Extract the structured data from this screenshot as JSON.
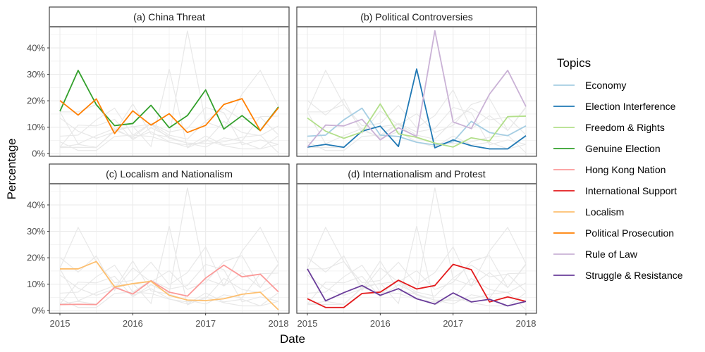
{
  "chart_data": {
    "type": "line",
    "xlabel": "Date",
    "ylabel": "Percentage",
    "x_ticks": [
      "2015",
      "2016",
      "2017",
      "2018"
    ],
    "y_ticks": [
      "0%",
      "10%",
      "20%",
      "30%",
      "40%"
    ],
    "xlim": [
      2015.0,
      2018.0
    ],
    "ylim": [
      -0.01,
      0.48
    ],
    "x": [
      2015.0,
      2015.25,
      2015.5,
      2015.75,
      2016.0,
      2016.25,
      2016.5,
      2016.75,
      2017.0,
      2017.25,
      2017.5,
      2017.75,
      2018.0
    ],
    "legend": {
      "title": "Topics",
      "placement": "right"
    },
    "background_color": "#e8e8e8",
    "series": [
      {
        "name": "Economy",
        "color": "#a6cee3",
        "values": [
          0.066,
          0.07,
          0.128,
          0.172,
          0.07,
          0.065,
          0.043,
          0.033,
          0.045,
          0.122,
          0.08,
          0.068,
          0.105
        ]
      },
      {
        "name": "Election Interference",
        "color": "#1f78b4",
        "values": [
          0.025,
          0.035,
          0.024,
          0.085,
          0.104,
          0.027,
          0.32,
          0.022,
          0.052,
          0.03,
          0.018,
          0.018,
          0.068
        ]
      },
      {
        "name": "Freedom & Rights",
        "color": "#b2df8a",
        "values": [
          0.135,
          0.085,
          0.058,
          0.082,
          0.188,
          0.075,
          0.062,
          0.04,
          0.025,
          0.06,
          0.048,
          0.14,
          0.142
        ]
      },
      {
        "name": "Genuine Election",
        "color": "#33a02c",
        "values": [
          0.16,
          0.315,
          0.185,
          0.106,
          0.114,
          0.183,
          0.098,
          0.144,
          0.241,
          0.093,
          0.144,
          0.087,
          0.177
        ]
      },
      {
        "name": "Hong Kong Nation",
        "color": "#fb9a99",
        "values": [
          0.023,
          0.024,
          0.023,
          0.088,
          0.063,
          0.113,
          0.07,
          0.055,
          0.123,
          0.172,
          0.128,
          0.138,
          0.071
        ]
      },
      {
        "name": "International Support",
        "color": "#e31a1c",
        "values": [
          0.045,
          0.012,
          0.012,
          0.065,
          0.07,
          0.115,
          0.082,
          0.095,
          0.175,
          0.155,
          0.033,
          0.052,
          0.035
        ]
      },
      {
        "name": "Localism",
        "color": "#fdbf6f",
        "values": [
          0.158,
          0.158,
          0.186,
          0.09,
          0.102,
          0.111,
          0.058,
          0.04,
          0.038,
          0.045,
          0.062,
          0.07,
          0.003
        ]
      },
      {
        "name": "Political Prosecution",
        "color": "#ff7f00",
        "values": [
          0.201,
          0.146,
          0.207,
          0.076,
          0.162,
          0.108,
          0.151,
          0.08,
          0.107,
          0.186,
          0.208,
          0.087,
          0.174
        ]
      },
      {
        "name": "Rule of Law",
        "color": "#cab2d6",
        "values": [
          0.025,
          0.108,
          0.105,
          0.13,
          0.052,
          0.098,
          0.065,
          0.465,
          0.12,
          0.095,
          0.225,
          0.315,
          0.178
        ]
      },
      {
        "name": "Struggle & Resistance",
        "color": "#6a3d9a",
        "values": [
          0.158,
          0.037,
          0.068,
          0.095,
          0.058,
          0.083,
          0.045,
          0.025,
          0.067,
          0.033,
          0.043,
          0.018,
          0.035
        ]
      }
    ],
    "panels": [
      {
        "title": "(a) China Threat",
        "highlight": [
          "Genuine Election",
          "Political Prosecution"
        ]
      },
      {
        "title": "(b) Political Controversies",
        "highlight": [
          "Economy",
          "Election Interference",
          "Freedom & Rights",
          "Rule of Law"
        ]
      },
      {
        "title": "(c) Localism and Nationalism",
        "highlight": [
          "Hong Kong Nation",
          "Localism"
        ]
      },
      {
        "title": "(d) Internationalism and Protest",
        "highlight": [
          "International Support",
          "Struggle & Resistance"
        ]
      }
    ]
  }
}
